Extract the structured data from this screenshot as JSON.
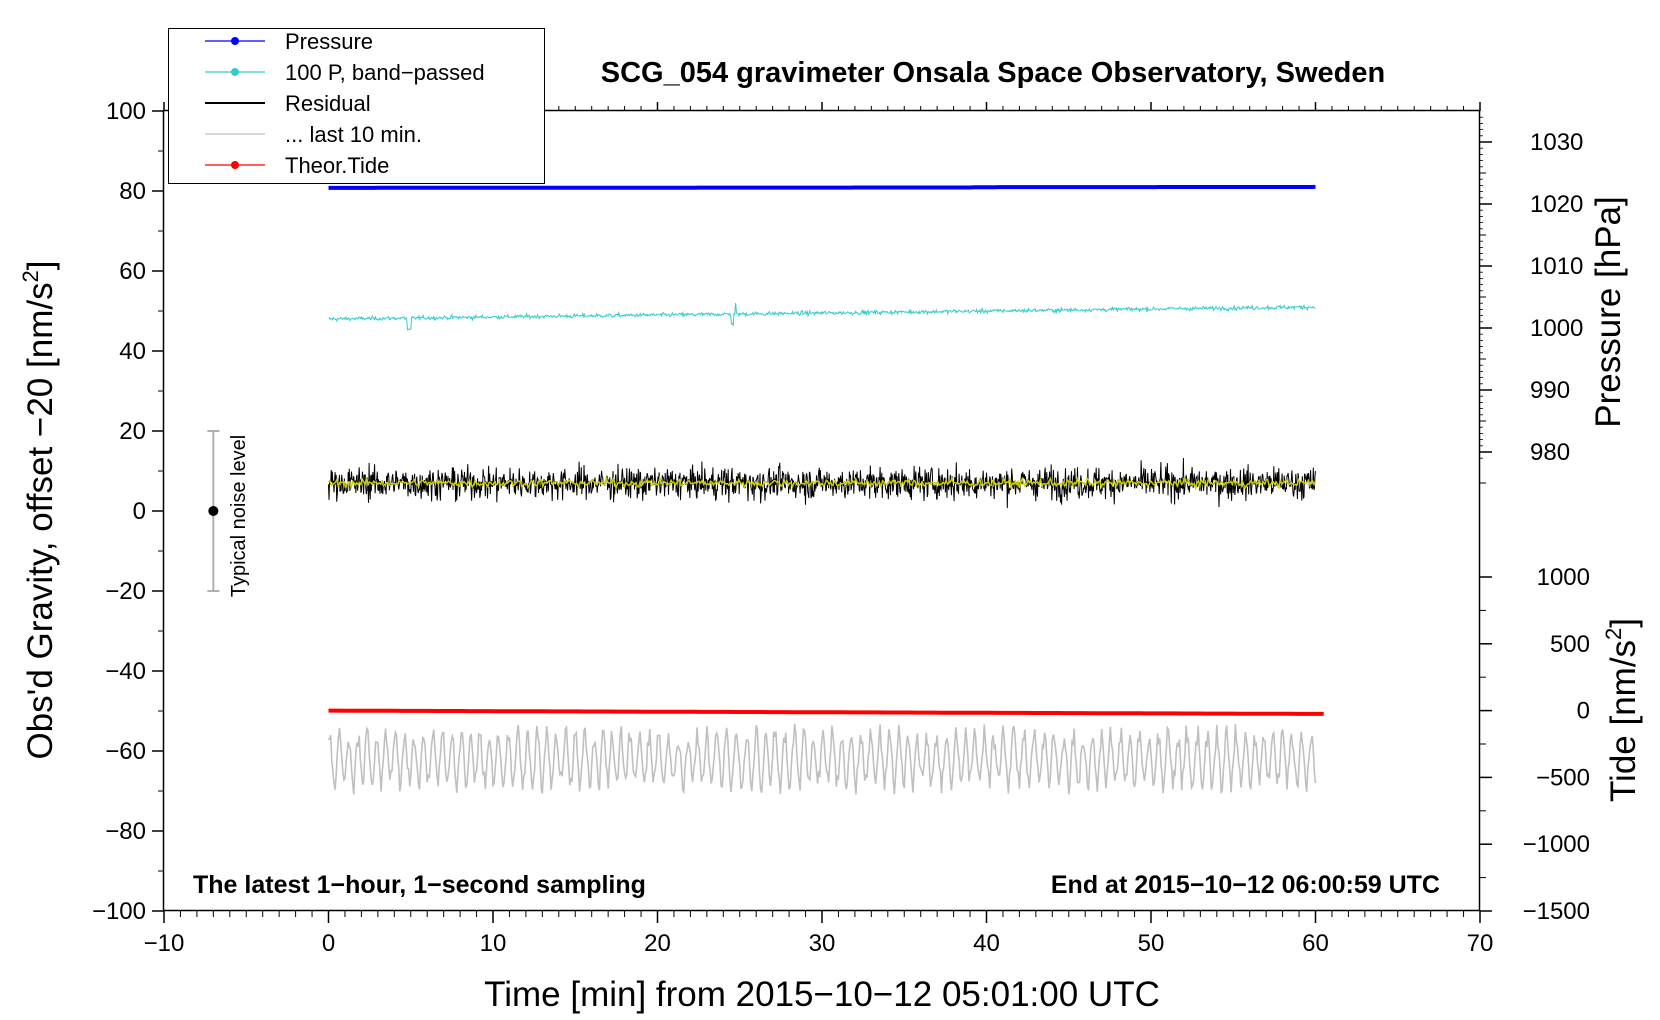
{
  "chart_data": {
    "type": "line",
    "title": "SCG_054 gravimeter Onsala Space Observatory, Sweden",
    "xlabel": "Time [min] from 2015−10−12 05:01:00 UTC",
    "ylabel_left": "Obs'd Gravity, offset −20 [nm/s",
    "ylabel_left_sup": "2",
    "ylabel_left_end": "]",
    "ylabel_right_pressure": "Pressure [hPa]",
    "ylabel_right_tide": "Tide [nm/s",
    "ylabel_right_tide_sup": "2",
    "ylabel_right_tide_end": "]",
    "xlim": [
      -10,
      70
    ],
    "ylim": [
      -100,
      100
    ],
    "pressure_axis_range": [
      970,
      1030
    ],
    "tide_axis_range": [
      -1500,
      1000
    ],
    "x_ticks": [
      "−10",
      "0",
      "10",
      "20",
      "30",
      "40",
      "50",
      "60",
      "70"
    ],
    "x_tick_values": [
      -10,
      0,
      10,
      20,
      30,
      40,
      50,
      60,
      70
    ],
    "y_ticks": [
      "100",
      "80",
      "60",
      "40",
      "20",
      "0",
      "−20",
      "−40",
      "−60",
      "−80",
      "−100"
    ],
    "y_tick_values": [
      100,
      80,
      60,
      40,
      20,
      0,
      -20,
      -40,
      -60,
      -80,
      -100
    ],
    "pressure_ticks": [
      "1030",
      "1020",
      "1010",
      "1000",
      "990",
      "980"
    ],
    "pressure_tick_values": [
      1030,
      1020,
      1010,
      1000,
      990,
      980
    ],
    "tide_ticks": [
      "1000",
      "500",
      "0",
      "−500",
      "−1000",
      "−1500"
    ],
    "tide_tick_values": [
      1000,
      500,
      0,
      -500,
      -1000,
      -1500
    ],
    "legend": {
      "placement": "top-left",
      "entries": [
        {
          "label": "Pressure",
          "color": "#0000ff",
          "marker": true
        },
        {
          "label": "100 P, band−passed",
          "color": "#33cccc",
          "marker": true
        },
        {
          "label": "Residual",
          "color": "#000000",
          "marker": false
        },
        {
          "label": "... last 10 min.",
          "color": "#c0c0c0",
          "marker": false
        },
        {
          "label": "Theor.Tide",
          "color": "#ff0000",
          "marker": true
        }
      ]
    },
    "annotations": {
      "bottom_left": "The latest 1−hour, 1−second sampling",
      "bottom_right": "End at 2015−10−12 06:00:59 UTC",
      "noise_label": "Typical noise level"
    },
    "noise_bar": {
      "x": -7,
      "center": 0,
      "low": -20,
      "high": 20
    },
    "series": [
      {
        "name": "Pressure",
        "color": "#0000ff",
        "axis": "pressure_hPa",
        "x_range": [
          0,
          60
        ],
        "start": 1022.6,
        "end": 1022.7,
        "values_on_left_axis_approx": 88
      },
      {
        "name": "100 P, band-passed",
        "color": "#33cccc",
        "axis": "left_offset",
        "x_range": [
          0,
          60
        ],
        "start": 48,
        "end": 51,
        "noise_amplitude": 1.5
      },
      {
        "name": "Residual",
        "color": "#000000",
        "axis": "left",
        "x_range": [
          0,
          60
        ],
        "mean": 7,
        "min": -5,
        "max": 22
      },
      {
        "name": "Residual smoothed",
        "color": "#cccc00",
        "axis": "left",
        "x_range": [
          0,
          60
        ],
        "mean": 7,
        "noise_amplitude": 2
      },
      {
        "name": "... last 10 min.",
        "color": "#c0c0c0",
        "axis": "left",
        "x_range": [
          0,
          60
        ],
        "mean": -62,
        "min": -71,
        "max": -51
      },
      {
        "name": "Theor.Tide",
        "color": "#ff0000",
        "axis": "tide_nm_s2",
        "x_range": [
          0,
          60.5
        ],
        "start": 0,
        "end": -25
      }
    ]
  }
}
